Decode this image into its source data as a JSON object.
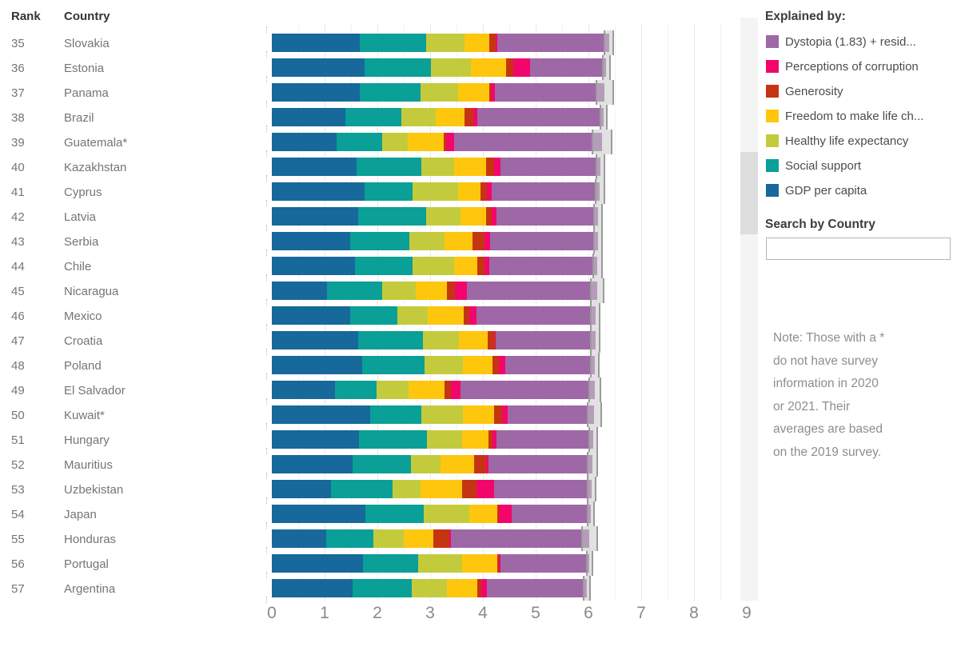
{
  "table": {
    "rank_header": "Rank",
    "country_header": "Country"
  },
  "legend": {
    "title": "Explained by:",
    "items": [
      {
        "key": "dystopia-residual",
        "label": "Dystopia (1.83) + resid...",
        "color": "#9e68a6"
      },
      {
        "key": "perceptions-of-corruption",
        "label": "Perceptions of corruption",
        "color": "#f3066b"
      },
      {
        "key": "generosity",
        "label": "Generosity",
        "color": "#c63511"
      },
      {
        "key": "freedom",
        "label": "Freedom to make life ch...",
        "color": "#fec60d"
      },
      {
        "key": "healthy-life-expectancy",
        "label": "Healthy life expectancy",
        "color": "#c3cb3d"
      },
      {
        "key": "social-support",
        "label": "Social support",
        "color": "#0a9f97"
      },
      {
        "key": "gdp-per-capita",
        "label": "GDP per capita",
        "color": "#17689b"
      }
    ]
  },
  "search": {
    "label": "Search by Country",
    "value": ""
  },
  "note": {
    "lines": [
      "Note: Those with a *",
      "do not have survey",
      "information in 2020",
      "or 2021. Their",
      "averages are based",
      "on the 2019 survey."
    ]
  },
  "chart_data": {
    "type": "bar",
    "stacked": true,
    "orientation": "horizontal",
    "grid": true,
    "legend_position": "right",
    "x_ticks": [
      0,
      1,
      2,
      3,
      4,
      5,
      6,
      7,
      8,
      9
    ],
    "xlim": [
      0,
      9.2
    ],
    "series_order": [
      "GDP per capita",
      "Social support",
      "Healthy life expectancy",
      "Freedom to make life choices",
      "Generosity",
      "Perceptions of corruption",
      "Dystopia (1.83) + residual"
    ],
    "series_keys": [
      "gdp-per-capita",
      "social-support",
      "healthy-life-expectancy",
      "freedom",
      "generosity",
      "perceptions-of-corruption",
      "dystopia-residual"
    ],
    "colors": [
      "#17689b",
      "#0a9f97",
      "#c3cb3d",
      "#fec60d",
      "#c63511",
      "#f3066b",
      "#9e68a6"
    ],
    "whisker_note": "gray box = confidence interval around total score",
    "rows": [
      {
        "rank": "35",
        "country": "Slovakia",
        "values": [
          1.67,
          1.26,
          0.72,
          0.47,
          0.13,
          0.03,
          2.11
        ],
        "total": 6.39,
        "ci": 0.08
      },
      {
        "rank": "36",
        "country": "Estonia",
        "values": [
          1.75,
          1.27,
          0.76,
          0.66,
          0.13,
          0.33,
          1.44
        ],
        "total": 6.34,
        "ci": 0.07
      },
      {
        "rank": "37",
        "country": "Panama",
        "values": [
          1.66,
          1.16,
          0.71,
          0.59,
          0.03,
          0.08,
          2.08
        ],
        "total": 6.31,
        "ci": 0.16
      },
      {
        "rank": "38",
        "country": "Brazil",
        "values": [
          1.4,
          1.05,
          0.66,
          0.54,
          0.17,
          0.07,
          2.4
        ],
        "total": 6.29,
        "ci": 0.06
      },
      {
        "rank": "39",
        "country": "Guatemala*",
        "values": [
          1.23,
          0.86,
          0.49,
          0.68,
          0.05,
          0.14,
          2.81
        ],
        "total": 6.26,
        "ci": 0.18
      },
      {
        "rank": "40",
        "country": "Kazakhstan",
        "values": [
          1.61,
          1.23,
          0.62,
          0.6,
          0.15,
          0.13,
          1.89
        ],
        "total": 6.23,
        "ci": 0.08
      },
      {
        "rank": "41",
        "country": "Cyprus",
        "values": [
          1.76,
          0.91,
          0.86,
          0.43,
          0.11,
          0.09,
          2.06
        ],
        "total": 6.22,
        "ci": 0.08
      },
      {
        "rank": "42",
        "country": "Latvia",
        "values": [
          1.63,
          1.29,
          0.66,
          0.48,
          0.1,
          0.1,
          1.92
        ],
        "total": 6.18,
        "ci": 0.07
      },
      {
        "rank": "43",
        "country": "Serbia",
        "values": [
          1.48,
          1.13,
          0.67,
          0.53,
          0.22,
          0.1,
          2.05
        ],
        "total": 6.18,
        "ci": 0.07
      },
      {
        "rank": "44",
        "country": "Chile",
        "values": [
          1.58,
          1.08,
          0.79,
          0.45,
          0.13,
          0.09,
          2.05
        ],
        "total": 6.17,
        "ci": 0.08
      },
      {
        "rank": "45",
        "country": "Nicaragua",
        "values": [
          1.04,
          1.05,
          0.63,
          0.6,
          0.15,
          0.23,
          2.47
        ],
        "total": 6.17,
        "ci": 0.12
      },
      {
        "rank": "46",
        "country": "Mexico",
        "values": [
          1.49,
          0.89,
          0.57,
          0.69,
          0.11,
          0.13,
          2.25
        ],
        "total": 6.13,
        "ci": 0.08
      },
      {
        "rank": "47",
        "country": "Croatia",
        "values": [
          1.64,
          1.23,
          0.68,
          0.54,
          0.14,
          0.02,
          1.88
        ],
        "total": 6.13,
        "ci": 0.08
      },
      {
        "rank": "48",
        "country": "Poland",
        "values": [
          1.71,
          1.18,
          0.73,
          0.56,
          0.13,
          0.12,
          1.69
        ],
        "total": 6.12,
        "ci": 0.07
      },
      {
        "rank": "49",
        "country": "El Salvador",
        "values": [
          1.19,
          0.8,
          0.6,
          0.68,
          0.13,
          0.18,
          2.54
        ],
        "total": 6.12,
        "ci": 0.11
      },
      {
        "rank": "50",
        "country": "Kuwait*",
        "values": [
          1.86,
          0.98,
          0.78,
          0.59,
          0.15,
          0.11,
          1.64
        ],
        "total": 6.11,
        "ci": 0.13
      },
      {
        "rank": "51",
        "country": "Hungary",
        "values": [
          1.65,
          1.29,
          0.66,
          0.51,
          0.07,
          0.08,
          1.83
        ],
        "total": 6.09,
        "ci": 0.07
      },
      {
        "rank": "52",
        "country": "Mauritius",
        "values": [
          1.53,
          1.11,
          0.56,
          0.63,
          0.23,
          0.05,
          1.96
        ],
        "total": 6.07,
        "ci": 0.09
      },
      {
        "rank": "53",
        "country": "Uzbekistan",
        "values": [
          1.12,
          1.17,
          0.53,
          0.78,
          0.28,
          0.33,
          1.85
        ],
        "total": 6.06,
        "ci": 0.08
      },
      {
        "rank": "54",
        "country": "Japan",
        "values": [
          1.77,
          1.11,
          0.87,
          0.53,
          0.02,
          0.24,
          1.5
        ],
        "total": 6.04,
        "ci": 0.06
      },
      {
        "rank": "55",
        "country": "Honduras",
        "values": [
          1.03,
          0.9,
          0.57,
          0.56,
          0.3,
          0.04,
          2.62
        ],
        "total": 6.02,
        "ci": 0.14
      },
      {
        "rank": "56",
        "country": "Portugal",
        "values": [
          1.72,
          1.06,
          0.82,
          0.67,
          0.03,
          0.04,
          1.68
        ],
        "total": 6.02,
        "ci": 0.05
      },
      {
        "rank": "57",
        "country": "Argentina",
        "values": [
          1.53,
          1.12,
          0.67,
          0.58,
          0.07,
          0.11,
          1.89
        ],
        "total": 5.97,
        "ci": 0.06
      }
    ]
  }
}
